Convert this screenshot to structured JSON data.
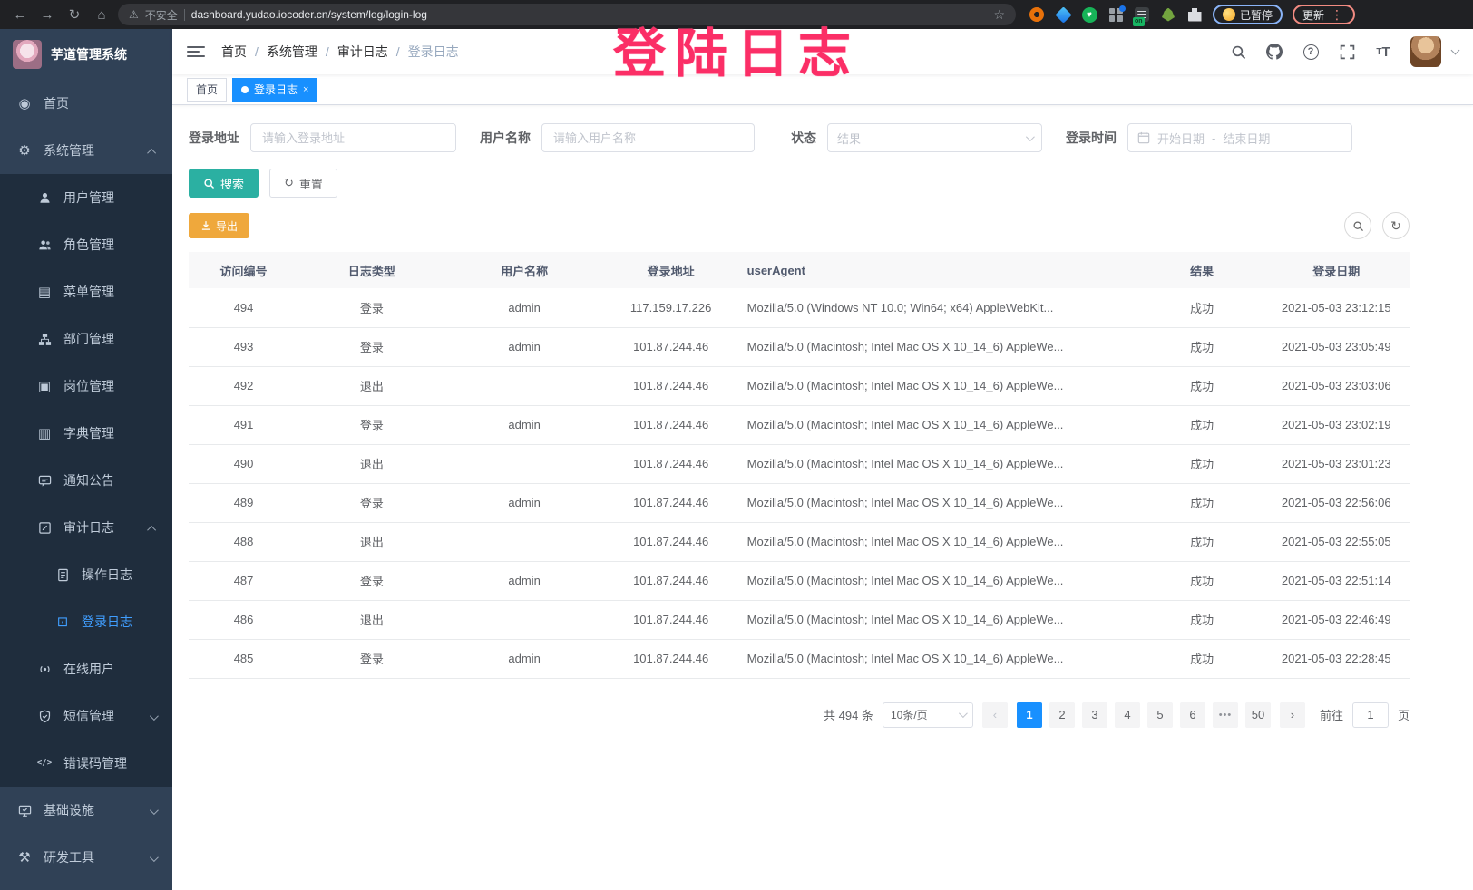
{
  "browser": {
    "security_label": "不安全",
    "url": "dashboard.yudao.iocoder.cn/system/log/login-log",
    "paused_label": "已暂停",
    "update_label": "更新"
  },
  "overlay": {
    "text": "登陆日志",
    "color": "#fb2e66"
  },
  "colors": {
    "accent_blue": "#1890ff",
    "menu_active_blue": "#409eff",
    "sidebar_bg": "#304156",
    "submenu_bg": "#1f2d3d",
    "search_button": "#2bb0a2",
    "export_button": "#efa83c",
    "overlay_pink": "#fb2e66"
  },
  "sidebar": {
    "title": "芋道管理系统",
    "items": [
      {
        "name": "home",
        "label": "首页",
        "icon": "dashboard-icon",
        "depth": 0
      },
      {
        "name": "system-mgmt",
        "label": "系统管理",
        "icon": "gear-icon",
        "depth": 0,
        "expand": "up"
      },
      {
        "name": "user-mgmt",
        "label": "用户管理",
        "icon": "user-icon",
        "depth": 1
      },
      {
        "name": "role-mgmt",
        "label": "角色管理",
        "icon": "users-icon",
        "depth": 1
      },
      {
        "name": "menu-mgmt",
        "label": "菜单管理",
        "icon": "menu-icon",
        "depth": 1
      },
      {
        "name": "dept-mgmt",
        "label": "部门管理",
        "icon": "tree-icon",
        "depth": 1
      },
      {
        "name": "post-mgmt",
        "label": "岗位管理",
        "icon": "post-icon",
        "depth": 1
      },
      {
        "name": "dict-mgmt",
        "label": "字典管理",
        "icon": "dict-icon",
        "depth": 1
      },
      {
        "name": "notice",
        "label": "通知公告",
        "icon": "bubble-icon",
        "depth": 1
      },
      {
        "name": "audit-log",
        "label": "审计日志",
        "icon": "edit-square-icon",
        "depth": 1,
        "expand": "up"
      },
      {
        "name": "operate-log",
        "label": "操作日志",
        "icon": "doc-icon",
        "depth": 2
      },
      {
        "name": "login-log",
        "label": "登录日志",
        "icon": "login-log-icon",
        "depth": 2,
        "active": true
      },
      {
        "name": "online-user",
        "label": "在线用户",
        "icon": "online-icon",
        "depth": 1
      },
      {
        "name": "sms-mgmt",
        "label": "短信管理",
        "icon": "shield-icon",
        "depth": 1,
        "expand": "down"
      },
      {
        "name": "error-code-mgmt",
        "label": "错误码管理",
        "icon": "code-icon",
        "depth": 1
      },
      {
        "name": "infrastructure",
        "label": "基础设施",
        "icon": "monitor-icon",
        "depth": 0,
        "expand": "down"
      },
      {
        "name": "dev-tools",
        "label": "研发工具",
        "icon": "tools-icon",
        "depth": 0,
        "expand": "down"
      }
    ]
  },
  "breadcrumb": [
    "首页",
    "系统管理",
    "审计日志",
    "登录日志"
  ],
  "tabs": [
    {
      "label": "首页",
      "active": false
    },
    {
      "label": "登录日志",
      "active": true
    }
  ],
  "search": {
    "fields": [
      {
        "label": "登录地址",
        "placeholder": "请输入登录地址",
        "type": "input"
      },
      {
        "label": "用户名称",
        "placeholder": "请输入用户名称",
        "type": "input"
      },
      {
        "label": "状态",
        "placeholder": "结果",
        "type": "select"
      },
      {
        "label": "登录时间",
        "start_placeholder": "开始日期",
        "separator": "-",
        "end_placeholder": "结束日期",
        "type": "daterange"
      }
    ],
    "search_label": "搜索",
    "reset_label": "重置"
  },
  "toolbar": {
    "export_label": "导出"
  },
  "table": {
    "columns": [
      "访问编号",
      "日志类型",
      "用户名称",
      "登录地址",
      "userAgent",
      "结果",
      "登录日期"
    ],
    "rows": [
      [
        "494",
        "登录",
        "admin",
        "117.159.17.226",
        "Mozilla/5.0 (Windows NT 10.0; Win64; x64) AppleWebKit...",
        "成功",
        "2021-05-03 23:12:15"
      ],
      [
        "493",
        "登录",
        "admin",
        "101.87.244.46",
        "Mozilla/5.0 (Macintosh; Intel Mac OS X 10_14_6) AppleWe...",
        "成功",
        "2021-05-03 23:05:49"
      ],
      [
        "492",
        "退出",
        "",
        "101.87.244.46",
        "Mozilla/5.0 (Macintosh; Intel Mac OS X 10_14_6) AppleWe...",
        "成功",
        "2021-05-03 23:03:06"
      ],
      [
        "491",
        "登录",
        "admin",
        "101.87.244.46",
        "Mozilla/5.0 (Macintosh; Intel Mac OS X 10_14_6) AppleWe...",
        "成功",
        "2021-05-03 23:02:19"
      ],
      [
        "490",
        "退出",
        "",
        "101.87.244.46",
        "Mozilla/5.0 (Macintosh; Intel Mac OS X 10_14_6) AppleWe...",
        "成功",
        "2021-05-03 23:01:23"
      ],
      [
        "489",
        "登录",
        "admin",
        "101.87.244.46",
        "Mozilla/5.0 (Macintosh; Intel Mac OS X 10_14_6) AppleWe...",
        "成功",
        "2021-05-03 22:56:06"
      ],
      [
        "488",
        "退出",
        "",
        "101.87.244.46",
        "Mozilla/5.0 (Macintosh; Intel Mac OS X 10_14_6) AppleWe...",
        "成功",
        "2021-05-03 22:55:05"
      ],
      [
        "487",
        "登录",
        "admin",
        "101.87.244.46",
        "Mozilla/5.0 (Macintosh; Intel Mac OS X 10_14_6) AppleWe...",
        "成功",
        "2021-05-03 22:51:14"
      ],
      [
        "486",
        "退出",
        "",
        "101.87.244.46",
        "Mozilla/5.0 (Macintosh; Intel Mac OS X 10_14_6) AppleWe...",
        "成功",
        "2021-05-03 22:46:49"
      ],
      [
        "485",
        "登录",
        "admin",
        "101.87.244.46",
        "Mozilla/5.0 (Macintosh; Intel Mac OS X 10_14_6) AppleWe...",
        "成功",
        "2021-05-03 22:28:45"
      ]
    ]
  },
  "pagination": {
    "total_label": "共 494 条",
    "page_size": "10条/页",
    "pages": [
      "1",
      "2",
      "3",
      "4",
      "5",
      "6",
      "•••",
      "50"
    ],
    "active_page": "1",
    "goto_label": "前往",
    "goto_value": "1",
    "page_label": "页"
  }
}
